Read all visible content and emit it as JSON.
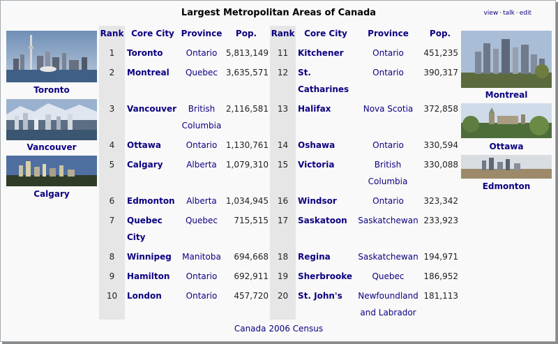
{
  "title": "Largest Metropolitan Areas of Canada",
  "links": {
    "view": "view",
    "talk": "talk",
    "edit": "edit"
  },
  "headers": {
    "rank": "Rank",
    "city": "Core City",
    "province": "Province",
    "pop": "Pop."
  },
  "photos_left": [
    {
      "name": "Toronto"
    },
    {
      "name": "Vancouver"
    },
    {
      "name": "Calgary"
    }
  ],
  "photos_right": [
    {
      "name": "Montreal"
    },
    {
      "name": "Ottawa"
    },
    {
      "name": "Edmonton"
    }
  ],
  "left_rows": [
    {
      "rank": "1",
      "city": "Toronto",
      "province": "Ontario",
      "pop": "5,813,149"
    },
    {
      "rank": "2",
      "city": "Montreal",
      "province": "Quebec",
      "pop": "3,635,571"
    },
    {
      "rank": "3",
      "city": "Vancouver",
      "province": "British Columbia",
      "pop": "2,116,581"
    },
    {
      "rank": "4",
      "city": "Ottawa",
      "province": "Ontario",
      "pop": "1,130,761"
    },
    {
      "rank": "5",
      "city": "Calgary",
      "province": "Alberta",
      "pop": "1,079,310"
    },
    {
      "rank": "6",
      "city": "Edmonton",
      "province": "Alberta",
      "pop": "1,034,945"
    },
    {
      "rank": "7",
      "city": "Quebec City",
      "province": "Quebec",
      "pop": "715,515"
    },
    {
      "rank": "8",
      "city": "Winnipeg",
      "province": "Manitoba",
      "pop": "694,668"
    },
    {
      "rank": "9",
      "city": "Hamilton",
      "province": "Ontario",
      "pop": "692,911"
    },
    {
      "rank": "10",
      "city": "London",
      "province": "Ontario",
      "pop": "457,720"
    }
  ],
  "right_rows": [
    {
      "rank": "11",
      "city": "Kitchener",
      "province": "Ontario",
      "pop": "451,235"
    },
    {
      "rank": "12",
      "city": "St. Catharines",
      "province": "Ontario",
      "pop": "390,317"
    },
    {
      "rank": "13",
      "city": "Halifax",
      "province": "Nova Scotia",
      "pop": "372,858"
    },
    {
      "rank": "14",
      "city": "Oshawa",
      "province": "Ontario",
      "pop": "330,594"
    },
    {
      "rank": "15",
      "city": "Victoria",
      "province": "British Columbia",
      "pop": "330,088"
    },
    {
      "rank": "16",
      "city": "Windsor",
      "province": "Ontario",
      "pop": "323,342"
    },
    {
      "rank": "17",
      "city": "Saskatoon",
      "province": "Saskatchewan",
      "pop": "233,923"
    },
    {
      "rank": "18",
      "city": "Regina",
      "province": "Saskatchewan",
      "pop": "194,971"
    },
    {
      "rank": "19",
      "city": "Sherbrooke",
      "province": "Quebec",
      "pop": "186,952"
    },
    {
      "rank": "20",
      "city": "St. John's",
      "province": "Newfoundland and Labrador",
      "pop": "181,113"
    }
  ],
  "footer": "Canada 2006 Census"
}
